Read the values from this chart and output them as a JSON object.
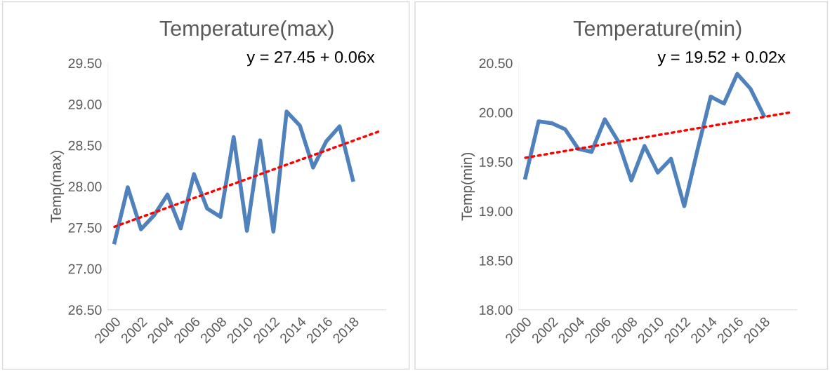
{
  "chart_data": [
    {
      "type": "line",
      "title": "Temperature(max)",
      "ylabel": "Temp(max)",
      "annotations": [
        "y = 27.45 + 0.06x"
      ],
      "x": [
        2000,
        2001,
        2002,
        2003,
        2004,
        2005,
        2006,
        2007,
        2008,
        2009,
        2010,
        2011,
        2012,
        2013,
        2014,
        2015,
        2016,
        2017,
        2018
      ],
      "series": [
        {
          "color": "#4f81bd",
          "values": [
            27.32,
            27.99,
            27.48,
            27.65,
            27.9,
            27.49,
            28.15,
            27.73,
            27.63,
            28.6,
            27.46,
            28.56,
            27.45,
            28.91,
            28.74,
            28.23,
            28.55,
            28.73,
            28.08
          ]
        },
        {
          "type": "line",
          "line_style": "dotted",
          "color": "#ff0000",
          "x": [
            2000,
            2010,
            2020
          ],
          "values": [
            27.51,
            28.09,
            28.67
          ]
        }
      ],
      "xlim": [
        1999.5,
        2020.5
      ],
      "xticks": [
        2000,
        2002,
        2004,
        2006,
        2008,
        2010,
        2012,
        2014,
        2016,
        2018
      ],
      "ylim": [
        26.5,
        29.5
      ],
      "yticks": [
        {
          "value": 26.5,
          "label": "26.50"
        },
        {
          "value": 27.0,
          "label": "27.00"
        },
        {
          "value": 27.5,
          "label": "27.50"
        },
        {
          "value": 28.0,
          "label": "28.00"
        },
        {
          "value": 28.5,
          "label": "28.50"
        },
        {
          "value": 29.0,
          "label": "29.00"
        },
        {
          "value": 29.5,
          "label": "29.50"
        }
      ],
      "grid": false,
      "marker": "none",
      "line_style": "solid"
    },
    {
      "type": "line",
      "title": "Temperature(min)",
      "ylabel": "Temp(min)",
      "annotations": [
        "y = 19.52 + 0.02x"
      ],
      "x": [
        2000,
        2001,
        2002,
        2003,
        2004,
        2005,
        2006,
        2007,
        2008,
        2009,
        2010,
        2011,
        2012,
        2013,
        2014,
        2015,
        2016,
        2017,
        2018
      ],
      "series": [
        {
          "color": "#4f81bd",
          "values": [
            19.34,
            19.91,
            19.89,
            19.83,
            19.63,
            19.6,
            19.93,
            19.71,
            19.31,
            19.66,
            19.39,
            19.53,
            19.05,
            19.62,
            20.16,
            20.09,
            20.39,
            20.24,
            19.97
          ]
        },
        {
          "type": "line",
          "line_style": "dotted",
          "color": "#ff0000",
          "x": [
            2000,
            2010,
            2020
          ],
          "values": [
            19.54,
            19.77,
            20.0
          ]
        }
      ],
      "xlim": [
        1999.5,
        2020.5
      ],
      "xticks": [
        2000,
        2002,
        2004,
        2006,
        2008,
        2010,
        2012,
        2014,
        2016,
        2018
      ],
      "ylim": [
        18.0,
        20.5
      ],
      "yticks": [
        {
          "value": 18.0,
          "label": "18.00"
        },
        {
          "value": 18.5,
          "label": "18.50"
        },
        {
          "value": 19.0,
          "label": "19.00"
        },
        {
          "value": 19.5,
          "label": "19.50"
        },
        {
          "value": 20.0,
          "label": "20.00"
        },
        {
          "value": 20.5,
          "label": "20.50"
        }
      ],
      "grid": false,
      "marker": "none",
      "line_style": "solid"
    }
  ]
}
